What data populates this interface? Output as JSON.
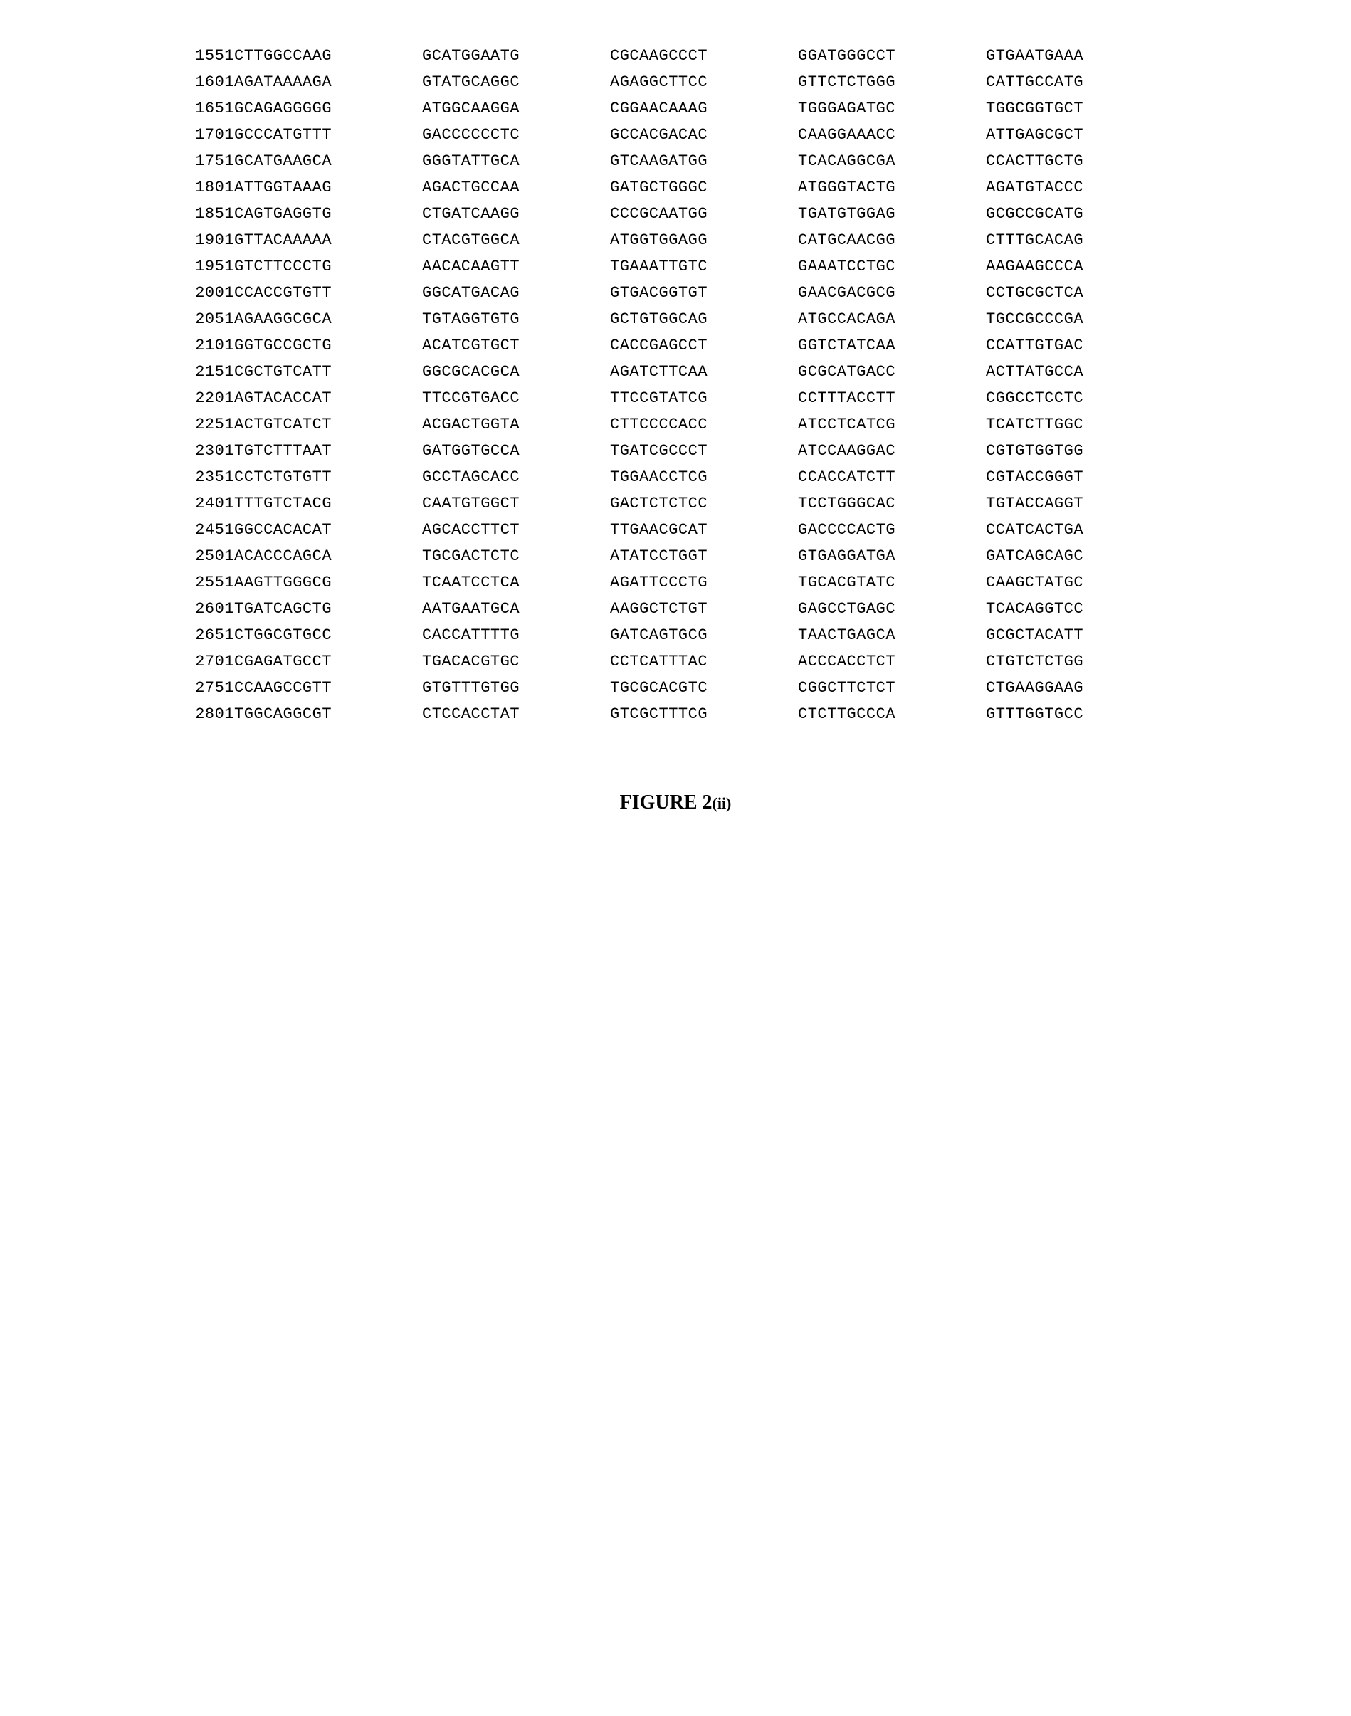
{
  "sequence": {
    "font_family": "Courier New",
    "font_size_pt": 16,
    "text_color": "#000000",
    "background_color": "#ffffff",
    "block_length": 10,
    "blocks_per_row": 5,
    "rows": [
      {
        "pos": 1551,
        "blocks": [
          "CTTGGCCAAG",
          "GCATGGAATG",
          "CGCAAGCCCT",
          "GGATGGGCCT",
          "GTGAATGAAA"
        ]
      },
      {
        "pos": 1601,
        "blocks": [
          "AGATAAAAGA",
          "GTATGCAGGC",
          "AGAGGCTTCC",
          "GTTCTCTGGG",
          "CATTGCCATG"
        ]
      },
      {
        "pos": 1651,
        "blocks": [
          "GCAGAGGGGG",
          "ATGGCAAGGA",
          "CGGAACAAAG",
          "TGGGAGATGC",
          "TGGCGGTGCT"
        ]
      },
      {
        "pos": 1701,
        "blocks": [
          "GCCCATGTTT",
          "GACCCCCCTC",
          "GCCACGACAC",
          "CAAGGAAACC",
          "ATTGAGCGCT"
        ]
      },
      {
        "pos": 1751,
        "blocks": [
          "GCATGAAGCA",
          "GGGTATTGCA",
          "GTCAAGATGG",
          "TCACAGGCGA",
          "CCACTTGCTG"
        ]
      },
      {
        "pos": 1801,
        "blocks": [
          "ATTGGTAAAG",
          "AGACTGCCAA",
          "GATGCTGGGC",
          "ATGGGTACTG",
          "AGATGTACCC"
        ]
      },
      {
        "pos": 1851,
        "blocks": [
          "CAGTGAGGTG",
          "CTGATCAAGG",
          "CCCGCAATGG",
          "TGATGTGGAG",
          "GCGCCGCATG"
        ]
      },
      {
        "pos": 1901,
        "blocks": [
          "GTTACAAAAA",
          "CTACGTGGCA",
          "ATGGTGGAGG",
          "CATGCAACGG",
          "CTTTGCACAG"
        ]
      },
      {
        "pos": 1951,
        "blocks": [
          "GTCTTCCCTG",
          "AACACAAGTT",
          "TGAAATTGTC",
          "GAAATCCTGC",
          "AAGAAGCCCA"
        ]
      },
      {
        "pos": 2001,
        "blocks": [
          "CCACCGTGTT",
          "GGCATGACAG",
          "GTGACGGTGT",
          "GAACGACGCG",
          "CCTGCGCTCA"
        ]
      },
      {
        "pos": 2051,
        "blocks": [
          "AGAAGGCGCA",
          "TGTAGGTGTG",
          "GCTGTGGCAG",
          "ATGCCACAGA",
          "TGCCGCCCGA"
        ]
      },
      {
        "pos": 2101,
        "blocks": [
          "GGTGCCGCTG",
          "ACATCGTGCT",
          "CACCGAGCCT",
          "GGTCTATCAA",
          "CCATTGTGAC"
        ]
      },
      {
        "pos": 2151,
        "blocks": [
          "CGCTGTCATT",
          "GGCGCACGCA",
          "AGATCTTCAA",
          "GCGCATGACC",
          "ACTTATGCCA"
        ]
      },
      {
        "pos": 2201,
        "blocks": [
          "AGTACACCAT",
          "TTCCGTGACC",
          "TTCCGTATCG",
          "CCTTTACCTT",
          "CGGCCTCCTC"
        ]
      },
      {
        "pos": 2251,
        "blocks": [
          "ACTGTCATCT",
          "ACGACTGGTA",
          "CTTCCCCACC",
          "ATCCTCATCG",
          "TCATCTTGGC"
        ]
      },
      {
        "pos": 2301,
        "blocks": [
          "TGTCTTTAAT",
          "GATGGTGCCA",
          "TGATCGCCCT",
          "ATCCAAGGAC",
          "CGTGTGGTGG"
        ]
      },
      {
        "pos": 2351,
        "blocks": [
          "CCTCTGTGTT",
          "GCCTAGCACC",
          "TGGAACCTCG",
          "CCACCATCTT",
          "CGTACCGGGT"
        ]
      },
      {
        "pos": 2401,
        "blocks": [
          "TTTGTCTACG",
          "CAATGTGGCT",
          "GACTCTCTCC",
          "TCCTGGGCAC",
          "TGTACCAGGT"
        ]
      },
      {
        "pos": 2451,
        "blocks": [
          "GGCCACACAT",
          "AGCACCTTCT",
          "TTGAACGCAT",
          "GACCCCACTG",
          "CCATCACTGA"
        ]
      },
      {
        "pos": 2501,
        "blocks": [
          "ACACCCAGCA",
          "TGCGACTCTC",
          "ATATCCTGGT",
          "GTGAGGATGA",
          "GATCAGCAGC"
        ]
      },
      {
        "pos": 2551,
        "blocks": [
          "AAGTTGGGCG",
          "TCAATCCTCA",
          "AGATTCCCTG",
          "TGCACGTATC",
          "CAAGCTATGC"
        ]
      },
      {
        "pos": 2601,
        "blocks": [
          "TGATCAGCTG",
          "AATGAATGCA",
          "AAGGCTCTGT",
          "GAGCCTGAGC",
          "TCACAGGTCC"
        ]
      },
      {
        "pos": 2651,
        "blocks": [
          "CTGGCGTGCC",
          "CACCATTTTG",
          "GATCAGTGCG",
          "TAACTGAGCA",
          "GCGCTACATT"
        ]
      },
      {
        "pos": 2701,
        "blocks": [
          "CGAGATGCCT",
          "TGACACGTGC",
          "CCTCATTTAC",
          "ACCCACCTCT",
          "CTGTCTCTGG"
        ]
      },
      {
        "pos": 2751,
        "blocks": [
          "CCAAGCCGTT",
          "GTGTTTGTGG",
          "TGCGCACGTC",
          "CGGCTTCTCT",
          "CTGAAGGAAG"
        ]
      },
      {
        "pos": 2801,
        "blocks": [
          "TGGCAGGCGT",
          "CTCCACCTAT",
          "GTCGCTTTCG",
          "CTCTTGCCCA",
          "GTTTGGTGCC"
        ]
      }
    ]
  },
  "caption": {
    "main": "FIGURE 2",
    "sub": "(ii)",
    "font_family": "Times New Roman",
    "font_size_pt": 20,
    "font_weight": "bold"
  }
}
